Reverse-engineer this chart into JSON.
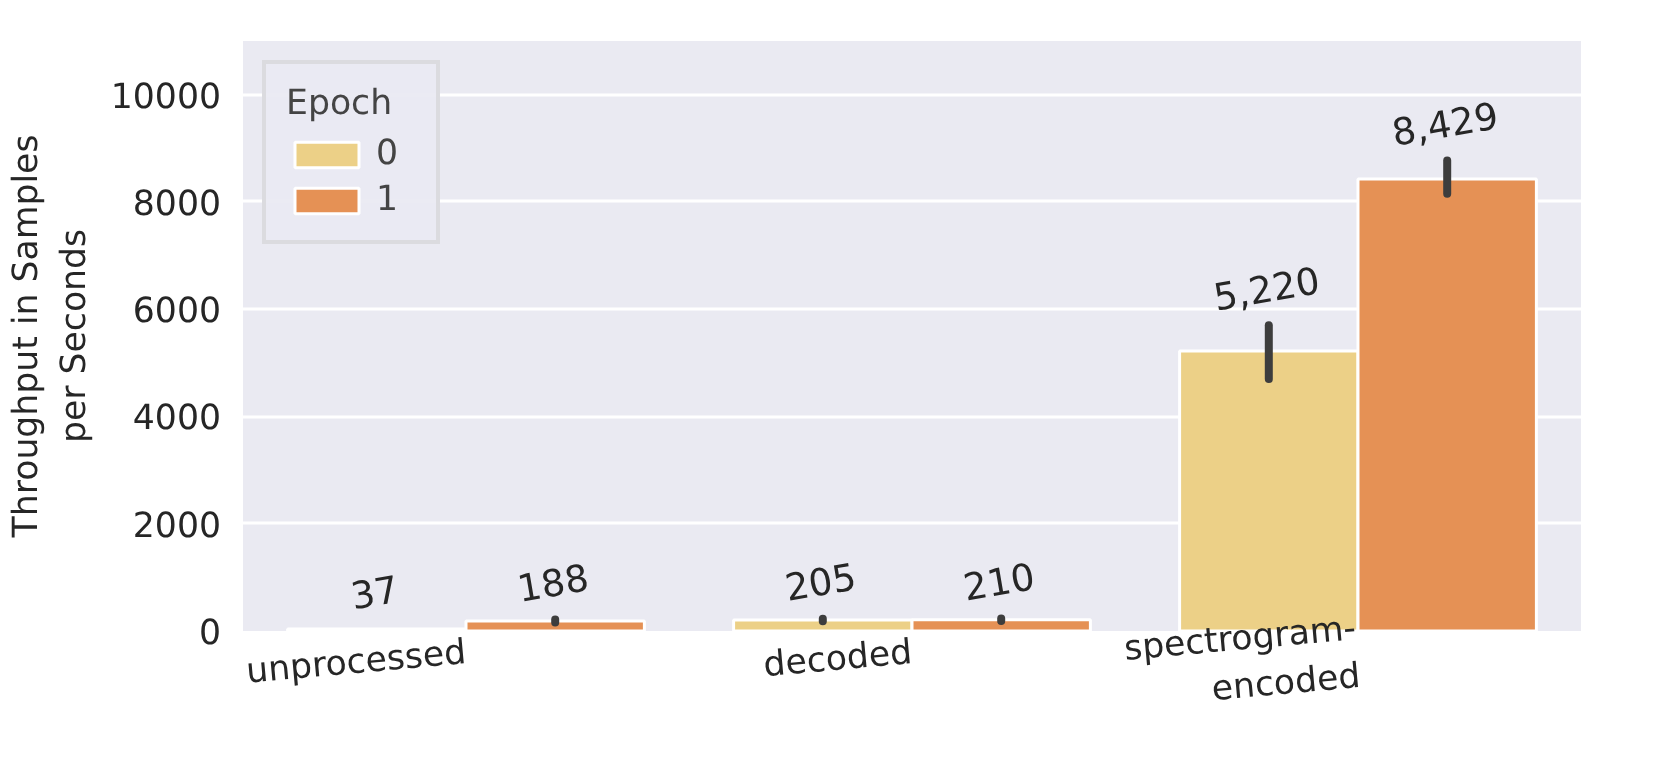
{
  "chart_data": {
    "type": "bar",
    "ylabel": "Throughput in Samples\nper Seconds",
    "legend_title": "Epoch",
    "categories": [
      "unprocessed",
      "decoded",
      "spectrogram-\nencoded"
    ],
    "series": [
      {
        "name": "0",
        "color": "#ecd087",
        "values": [
          37,
          205,
          5220
        ],
        "value_labels": [
          "37",
          "205",
          "5,220"
        ],
        "errors": [
          null,
          [
            180,
            230
          ],
          [
            4700,
            5700
          ]
        ]
      },
      {
        "name": "1",
        "color": "#e59155",
        "values": [
          188,
          210,
          8429
        ],
        "value_labels": [
          "188",
          "210",
          "8,429"
        ],
        "errors": [
          [
            160,
            215
          ],
          [
            185,
            235
          ],
          [
            8150,
            8770
          ]
        ]
      }
    ],
    "ylim": [
      0,
      11000
    ],
    "yticks": [
      0,
      2000,
      4000,
      6000,
      8000,
      10000
    ],
    "grid": "y",
    "legend": "top left"
  }
}
